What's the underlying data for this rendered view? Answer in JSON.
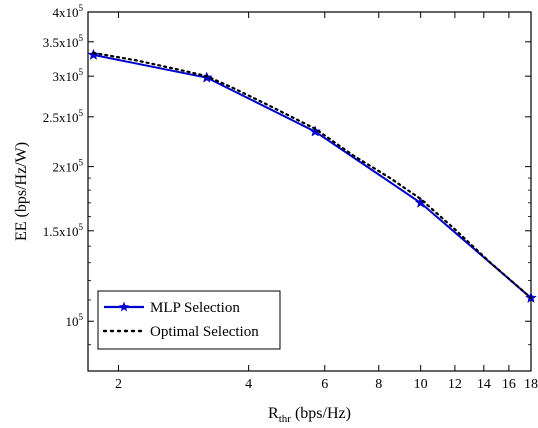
{
  "chart_data": {
    "type": "line",
    "xlabel": {
      "base": "R",
      "sub": "thr",
      "unit": " (bps/Hz)"
    },
    "ylabel": "EE (bps/Hz/W)",
    "x_scale": "log",
    "y_scale": "log",
    "xlim": [
      1.7,
      18
    ],
    "ylim": [
      80000,
      400000
    ],
    "x_ticks": [
      2,
      4,
      6,
      8,
      10,
      12,
      14,
      16,
      18
    ],
    "y_ticks": [
      {
        "value": 100000,
        "mant": "",
        "exp": "5"
      },
      {
        "value": 150000,
        "mant": "1.5",
        "exp": "5"
      },
      {
        "value": 200000,
        "mant": "2",
        "exp": "5"
      },
      {
        "value": 250000,
        "mant": "2.5",
        "exp": "5"
      },
      {
        "value": 300000,
        "mant": "3",
        "exp": "5"
      },
      {
        "value": 350000,
        "mant": "3.5",
        "exp": "5"
      },
      {
        "value": 400000,
        "mant": "4",
        "exp": "5"
      }
    ],
    "series": [
      {
        "name": "MLP Selection",
        "color": "#0000cc",
        "style": "solid",
        "marker": "star",
        "x": [
          1.75,
          3.2,
          5.7,
          10.0,
          18.0
        ],
        "y": [
          330000,
          298000,
          234000,
          170000,
          111000
        ]
      },
      {
        "name": "Optimal Selection",
        "color": "#000000",
        "style": "dotted",
        "marker": "none",
        "x": [
          1.75,
          2.2,
          2.8,
          3.2,
          3.7,
          4.5,
          5.7,
          7.0,
          8.5,
          10.0,
          12.0,
          14.5,
          18.0
        ],
        "y": [
          333000,
          322000,
          308000,
          300000,
          284000,
          262000,
          237000,
          210000,
          190000,
          173000,
          151000,
          130000,
          111000
        ]
      }
    ],
    "legend_position": "bottom-left",
    "grid": false
  }
}
